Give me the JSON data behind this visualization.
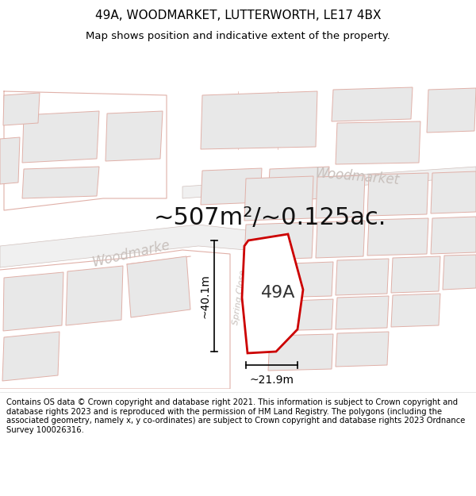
{
  "title": "49A, WOODMARKET, LUTTERWORTH, LE17 4BX",
  "subtitle": "Map shows position and indicative extent of the property.",
  "area_label": "~507m²/~0.125ac.",
  "plot_label": "49A",
  "dim_width": "~21.9m",
  "dim_height": "~40.1m",
  "road_label_left": "Woodmarke",
  "road_label_right": "Woodmarket",
  "road_label2": "Spring Close",
  "footer": "Contains OS data © Crown copyright and database right 2021. This information is subject to Crown copyright and database rights 2023 and is reproduced with the permission of HM Land Registry. The polygons (including the associated geometry, namely x, y co-ordinates) are subject to Crown copyright and database rights 2023 Ordnance Survey 100026316.",
  "map_bg": "#ffffff",
  "bldg_fc": "#e8e8e8",
  "bldg_ec": "#e0b0a8",
  "plot_fill": "#ffffff",
  "plot_edge": "#cc0000",
  "road_text_color": "#c8c0bc",
  "title_color": "#000000",
  "footer_color": "#000000",
  "title_fontsize": 11,
  "subtitle_fontsize": 9.5,
  "area_fontsize": 22,
  "plot_label_fontsize": 16,
  "road_fontsize": 12,
  "dim_fontsize": 10,
  "footer_fontsize": 7.2
}
